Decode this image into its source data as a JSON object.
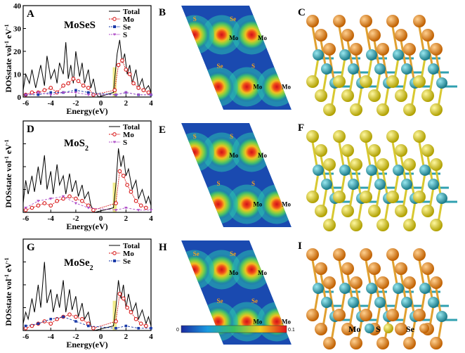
{
  "panels": {
    "A": {
      "letter": "A",
      "compound": "MoSeS",
      "legend": [
        "Total",
        "Mo",
        "Se",
        "S"
      ],
      "label_sub": ""
    },
    "D": {
      "letter": "D",
      "compound": "MoS",
      "sub": "2",
      "legend": [
        "Total",
        "Mo",
        "S"
      ]
    },
    "G": {
      "letter": "G",
      "compound": "MoSe",
      "sub": "2",
      "legend": [
        "Total",
        "Mo",
        "Se"
      ]
    },
    "B": {
      "letter": "B"
    },
    "E": {
      "letter": "E"
    },
    "H": {
      "letter": "H"
    },
    "C": {
      "letter": "C"
    },
    "F": {
      "letter": "F"
    },
    "I": {
      "letter": "I"
    }
  },
  "axes": {
    "xlabel": "Energy(eV)",
    "ylabel_main": "DOSstate vol",
    "ylabel_sup": "-1",
    "ylabel_unit": " eV",
    "xticks": [
      "-6",
      "-4",
      "-2",
      "0",
      "2",
      "4"
    ],
    "yticks_A": [
      "0",
      "10",
      "20",
      "30",
      "40"
    ]
  },
  "maps": {
    "B": {
      "labels": [
        {
          "t": "S"
        },
        {
          "t": "Se"
        },
        {
          "t": "Mo"
        },
        {
          "t": "Mo"
        },
        {
          "t": "Se"
        },
        {
          "t": "S"
        },
        {
          "t": "Mo"
        },
        {
          "t": "Mo"
        }
      ]
    },
    "E": {
      "labels": [
        {
          "t": "S"
        },
        {
          "t": "S"
        },
        {
          "t": "Mo"
        },
        {
          "t": "Mo"
        },
        {
          "t": "S"
        },
        {
          "t": "S"
        },
        {
          "t": "Mo"
        },
        {
          "t": "Mo"
        }
      ]
    },
    "H": {
      "labels": [
        {
          "t": "Se"
        },
        {
          "t": "Se"
        },
        {
          "t": "Mo"
        },
        {
          "t": "Mo"
        },
        {
          "t": "Se"
        },
        {
          "t": "Se"
        },
        {
          "t": "Mo"
        },
        {
          "t": "Mo"
        }
      ]
    }
  },
  "colorbar": {
    "min": "0",
    "max": "0.1"
  },
  "atom_key": [
    {
      "label": "Mo",
      "color": "#2aa6b4"
    },
    {
      "label": "S",
      "color": "#e6d21a"
    },
    {
      "label": "Se",
      "color": "#e88a1a"
    }
  ],
  "colors": {
    "total": "#000000",
    "mo": "#d81a1a",
    "se": "#1a3aa8",
    "s": "#b050c8",
    "gap": "#f0ec8a"
  },
  "chart_data": [
    {
      "type": "line",
      "panel": "A",
      "xlim": [
        -6.2,
        4
      ],
      "ylim": [
        0,
        40
      ],
      "xlabel": "Energy(eV)",
      "ylabel": "DOSstate vol-1 eV-1",
      "series": [
        {
          "name": "Total",
          "x": [
            -6.2,
            -6,
            -5.7,
            -5.5,
            -5.2,
            -5,
            -4.8,
            -4.5,
            -4.3,
            -4,
            -3.7,
            -3.5,
            -3.3,
            -3,
            -2.8,
            -2.6,
            -2.4,
            -2.2,
            -2,
            -1.7,
            -1.5,
            -1.3,
            -1,
            -0.8,
            -0.6,
            -0.4,
            -0.2,
            1.0,
            1.1,
            1.3,
            1.5,
            1.7,
            1.9,
            2.1,
            2.3,
            2.5,
            2.8,
            3,
            3.3,
            3.5,
            3.8,
            4
          ],
          "y": [
            3,
            10,
            6,
            12,
            4,
            9,
            14,
            5,
            18,
            8,
            12,
            6,
            15,
            10,
            24,
            8,
            14,
            6,
            20,
            9,
            15,
            6,
            12,
            4,
            8,
            2,
            0,
            2,
            8,
            19,
            25,
            15,
            19,
            10,
            14,
            6,
            12,
            4,
            8,
            3,
            5,
            2
          ]
        },
        {
          "name": "Mo",
          "x": [
            -6,
            -5.5,
            -5,
            -4.5,
            -4,
            -3.5,
            -3,
            -2.6,
            -2.2,
            -1.8,
            -1.4,
            -1,
            -0.6,
            1.1,
            1.4,
            1.7,
            2,
            2.3,
            2.6,
            3,
            3.4,
            3.8
          ],
          "y": [
            1,
            2,
            2,
            3,
            4,
            2,
            5,
            6,
            8,
            7,
            5,
            4,
            1,
            3,
            14,
            16,
            12,
            10,
            6,
            4,
            3,
            2
          ]
        },
        {
          "name": "Se",
          "x": [
            -6,
            -5,
            -4,
            -3,
            -2,
            -1,
            1.2,
            2,
            3,
            4
          ],
          "y": [
            1,
            1,
            2,
            2,
            3,
            2,
            1,
            2,
            1,
            1
          ]
        },
        {
          "name": "S",
          "x": [
            -6,
            -5,
            -4,
            -3,
            -2,
            -1,
            1.2,
            2,
            3,
            4
          ],
          "y": [
            1,
            2,
            1,
            2,
            2,
            1,
            1,
            2,
            1,
            1
          ]
        }
      ]
    },
    {
      "type": "line",
      "panel": "D",
      "xlim": [
        -6.2,
        4
      ],
      "ylim": [
        0,
        40
      ],
      "xlabel": "Energy(eV)",
      "ylabel": "DOSstate vol-1 eV-1",
      "series": [
        {
          "name": "Total",
          "x": [
            -6.2,
            -6,
            -5.8,
            -5.5,
            -5.3,
            -5,
            -4.8,
            -4.5,
            -4.3,
            -4,
            -3.8,
            -3.5,
            -3.3,
            -3,
            -2.8,
            -2.5,
            -2.3,
            -2,
            -1.8,
            -1.5,
            -1.3,
            -1,
            -0.8,
            -0.5,
            1.0,
            1.2,
            1.4,
            1.6,
            1.8,
            2,
            2.2,
            2.5,
            2.8,
            3,
            3.3,
            3.6,
            3.8,
            4
          ],
          "y": [
            4,
            14,
            8,
            16,
            9,
            20,
            12,
            25,
            10,
            18,
            8,
            21,
            12,
            16,
            8,
            17,
            9,
            14,
            7,
            12,
            6,
            9,
            3,
            0,
            2,
            12,
            28,
            20,
            25,
            16,
            19,
            10,
            14,
            6,
            10,
            4,
            7,
            3
          ]
        },
        {
          "name": "Mo",
          "x": [
            -6,
            -5.5,
            -5,
            -4.5,
            -4,
            -3.5,
            -3,
            -2.5,
            -2,
            -1.5,
            -1,
            -0.6,
            1.2,
            1.5,
            1.8,
            2.1,
            2.4,
            2.8,
            3.2,
            3.6
          ],
          "y": [
            1,
            2,
            3,
            4,
            3,
            5,
            6,
            7,
            6,
            5,
            3,
            1,
            4,
            18,
            16,
            12,
            9,
            5,
            3,
            2
          ]
        },
        {
          "name": "S",
          "x": [
            -6,
            -5,
            -4,
            -3,
            -2,
            -1,
            1.2,
            2,
            3,
            4
          ],
          "y": [
            2,
            5,
            6,
            7,
            4,
            2,
            1,
            2,
            1,
            1
          ]
        }
      ]
    },
    {
      "type": "line",
      "panel": "G",
      "xlim": [
        -6.2,
        4
      ],
      "ylim": [
        0,
        40
      ],
      "xlabel": "Energy(eV)",
      "ylabel": "DOSstate vol-1 eV-1",
      "series": [
        {
          "name": "Total",
          "x": [
            -6.2,
            -6,
            -5.8,
            -5.5,
            -5.3,
            -5,
            -4.8,
            -4.5,
            -4.3,
            -4,
            -3.8,
            -3.5,
            -3.3,
            -3,
            -2.8,
            -2.5,
            -2.3,
            -2,
            -1.8,
            -1.5,
            -1.3,
            -1,
            -0.8,
            -0.5,
            1.0,
            1.2,
            1.4,
            1.6,
            1.8,
            2,
            2.2,
            2.5,
            2.8,
            3,
            3.3,
            3.6,
            3.8,
            4
          ],
          "y": [
            3,
            8,
            5,
            14,
            8,
            20,
            10,
            30,
            12,
            18,
            8,
            16,
            10,
            22,
            8,
            18,
            9,
            15,
            6,
            12,
            5,
            8,
            2,
            0,
            2,
            10,
            22,
            14,
            20,
            10,
            16,
            8,
            12,
            5,
            9,
            3,
            6,
            2
          ]
        },
        {
          "name": "Mo",
          "x": [
            -6,
            -5.5,
            -5,
            -4.5,
            -4,
            -3.5,
            -3,
            -2.5,
            -2,
            -1.5,
            -1,
            -0.6,
            1.2,
            1.5,
            1.8,
            2.1,
            2.4,
            2.8,
            3.2,
            3.6
          ],
          "y": [
            1,
            2,
            3,
            4,
            3,
            5,
            6,
            7,
            6,
            5,
            3,
            1,
            4,
            16,
            14,
            10,
            8,
            5,
            3,
            2
          ]
        },
        {
          "name": "Se",
          "x": [
            -6,
            -5,
            -4,
            -3,
            -2,
            -1,
            1.2,
            2,
            3,
            4
          ],
          "y": [
            2,
            3,
            5,
            6,
            4,
            2,
            1,
            2,
            1,
            1
          ]
        }
      ]
    }
  ]
}
